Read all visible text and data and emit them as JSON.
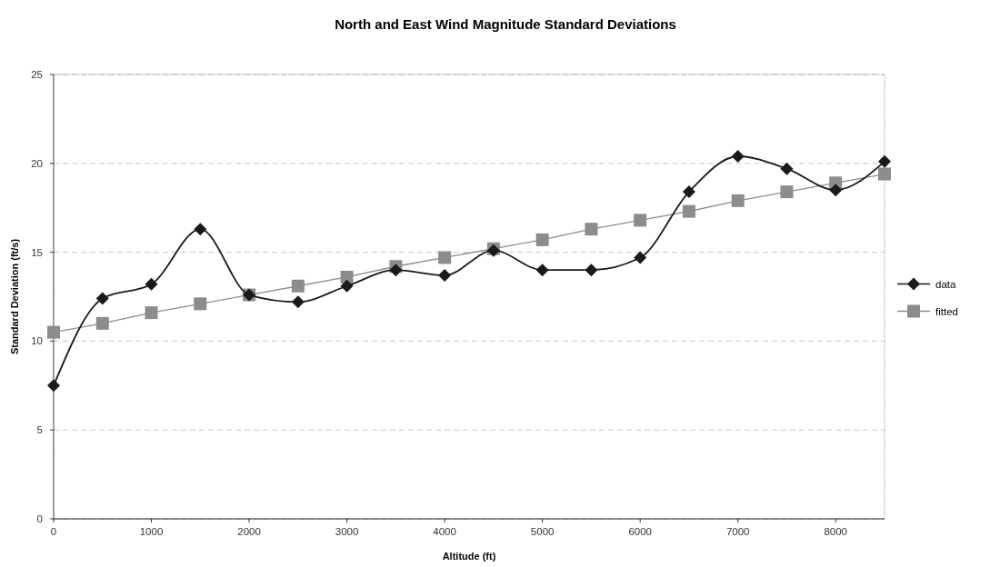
{
  "chart_data": {
    "type": "line",
    "title": "North and East Wind Magnitude Standard Deviations",
    "xlabel": "Altitude (ft)",
    "ylabel": "Standard Deviation (ft/s)",
    "x": [
      0,
      500,
      1000,
      1500,
      2000,
      2500,
      3000,
      3500,
      4000,
      4500,
      5000,
      5500,
      6000,
      6500,
      7000,
      7500,
      8000,
      8500
    ],
    "xlim": [
      0,
      8500
    ],
    "xticks": [
      0,
      1000,
      2000,
      3000,
      4000,
      5000,
      6000,
      7000,
      8000
    ],
    "ylim": [
      0,
      25
    ],
    "yticks": [
      0,
      5,
      10,
      15,
      20,
      25
    ],
    "grid": "y",
    "legend": "right",
    "series": [
      {
        "name": "data",
        "color": "#1a1a1a",
        "marker": "diamond",
        "values": [
          7.5,
          12.4,
          13.2,
          16.3,
          12.6,
          12.2,
          13.1,
          14.0,
          13.7,
          15.1,
          14.0,
          14.0,
          14.7,
          18.4,
          20.4,
          19.7,
          18.5,
          20.1
        ]
      },
      {
        "name": "fitted",
        "color": "#8c8c8c",
        "marker": "square",
        "values": [
          10.5,
          11.0,
          11.6,
          12.1,
          12.6,
          13.1,
          13.6,
          14.2,
          14.7,
          15.2,
          15.7,
          16.3,
          16.8,
          17.3,
          17.9,
          18.4,
          18.9,
          19.4
        ]
      }
    ]
  }
}
